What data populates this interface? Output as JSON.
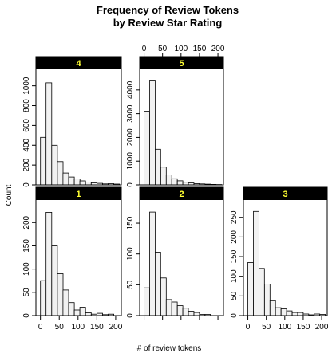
{
  "chart_data": {
    "type": "bar",
    "title_line1": "Frequency of Review Tokens",
    "title_line2": "by Review Star Rating",
    "xlabel": "# of review tokens",
    "ylabel": "Count",
    "bin_width": 15,
    "x_ticks": [
      0,
      50,
      100,
      150,
      200
    ],
    "x_tick_labels": [
      "0",
      "50",
      "100",
      "150",
      "200"
    ],
    "colors": {
      "strip_bg": "#000000",
      "strip_text": "#ffff33",
      "bar_fill": "#f2f2f2",
      "bar_stroke": "#000000"
    },
    "panels": [
      {
        "id": "4",
        "label": "4",
        "ylim": [
          0,
          1150
        ],
        "y_ticks": [
          0,
          200,
          400,
          600,
          800,
          1000
        ],
        "bins_start": [
          0,
          15,
          30,
          45,
          60,
          75,
          90,
          105,
          120,
          135,
          150,
          165,
          180,
          195
        ],
        "values": [
          480,
          1030,
          400,
          235,
          120,
          80,
          60,
          40,
          28,
          20,
          15,
          10,
          12,
          8
        ]
      },
      {
        "id": "5",
        "label": "5",
        "ylim": [
          0,
          4800
        ],
        "y_ticks": [
          0,
          1000,
          2000,
          3000,
          4000
        ],
        "bins_start": [
          0,
          15,
          30,
          45,
          60,
          75,
          90,
          105,
          120,
          135,
          150,
          165,
          180,
          195
        ],
        "values": [
          3100,
          4380,
          1500,
          750,
          420,
          260,
          170,
          110,
          80,
          55,
          40,
          30,
          20,
          15
        ]
      },
      {
        "id": "1",
        "label": "1",
        "ylim": [
          0,
          245
        ],
        "y_ticks": [
          0,
          50,
          100,
          150,
          200
        ],
        "bins_start": [
          0,
          15,
          30,
          45,
          60,
          75,
          90,
          105,
          120,
          135,
          150,
          165,
          180
        ],
        "values": [
          75,
          222,
          150,
          90,
          55,
          28,
          12,
          18,
          6,
          3,
          5,
          2,
          3
        ]
      },
      {
        "id": "2",
        "label": "2",
        "ylim": [
          0,
          185
        ],
        "y_ticks": [
          0,
          50,
          100,
          150
        ],
        "bins_start": [
          0,
          15,
          30,
          45,
          60,
          75,
          90,
          105,
          120,
          135,
          150,
          165
        ],
        "values": [
          45,
          168,
          103,
          61,
          26,
          22,
          16,
          12,
          7,
          5,
          2,
          2
        ]
      },
      {
        "id": "3",
        "label": "3",
        "ylim": [
          0,
          290
        ],
        "y_ticks": [
          0,
          50,
          100,
          150,
          200,
          250
        ],
        "bins_start": [
          0,
          15,
          30,
          45,
          60,
          75,
          90,
          105,
          120,
          135,
          150,
          165,
          180,
          195
        ],
        "values": [
          135,
          265,
          120,
          80,
          38,
          20,
          17,
          12,
          8,
          8,
          4,
          2,
          4,
          3
        ]
      }
    ]
  }
}
